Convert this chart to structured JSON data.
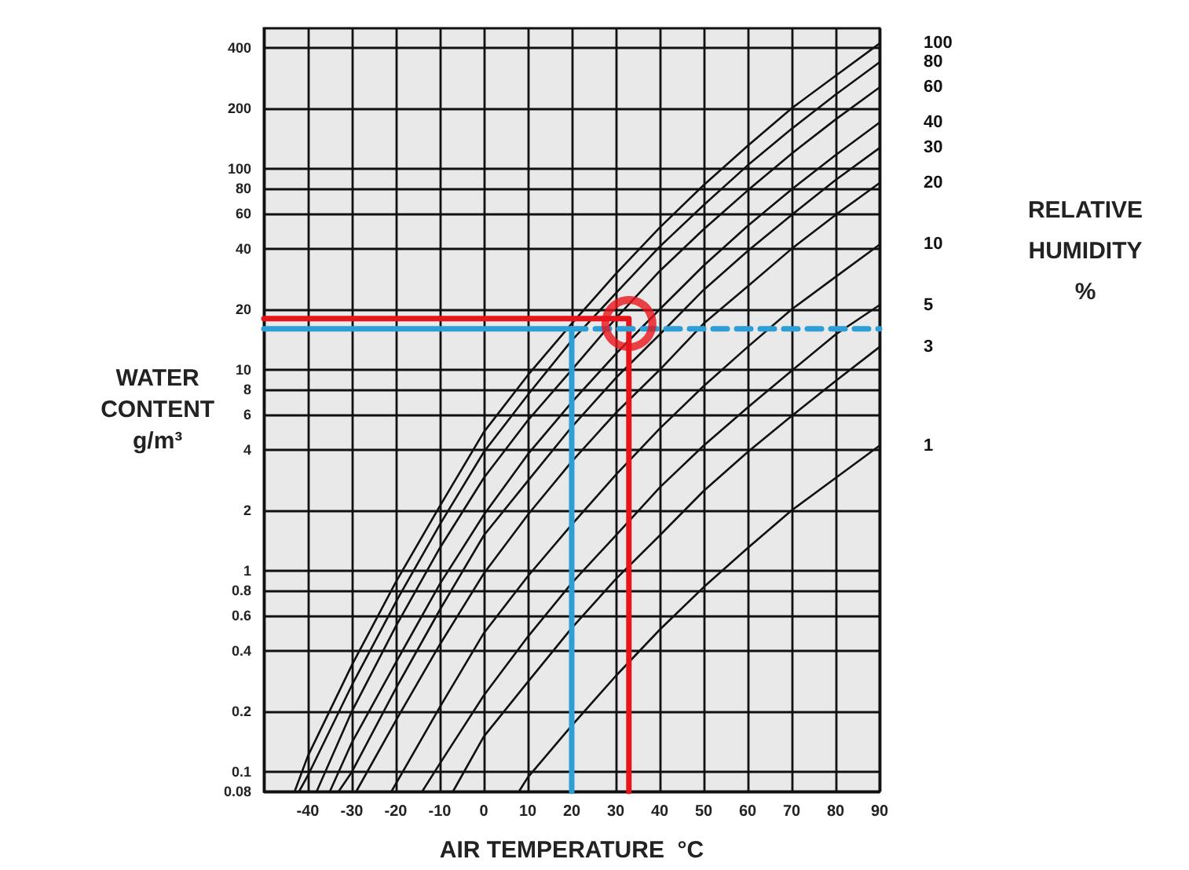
{
  "chart_data": {
    "type": "line",
    "xlabel": "AIR TEMPERATURE  °C",
    "ylabel": "WATER CONTENT g/m³",
    "legend_title": "RELATIVE HUMIDITY %",
    "log": "y",
    "grid": true,
    "marker": "none",
    "line_style": "solid",
    "xlim": [
      -50,
      90
    ],
    "xticks": [
      {
        "value": -50,
        "label": null
      },
      -40,
      -30,
      -20,
      -10,
      0,
      10,
      20,
      30,
      40,
      50,
      60,
      70,
      80,
      90
    ],
    "ylim": [
      0.08,
      500
    ],
    "yticks": [
      0.08,
      0.1,
      0.2,
      0.4,
      0.6,
      0.8,
      1,
      2,
      4,
      6,
      8,
      10,
      20,
      40,
      60,
      80,
      100,
      200,
      400
    ],
    "series": [
      {
        "name": "100",
        "color": "#111111",
        "x": [
          -43,
          -40,
          -30,
          -20,
          -10,
          0,
          10,
          20,
          30,
          40,
          50,
          60,
          70,
          80,
          90
        ],
        "values": [
          0.08,
          0.12,
          0.34,
          0.88,
          2.1,
          4.9,
          9.4,
          17,
          30,
          51,
          83,
          130,
          200,
          290,
          420
        ]
      },
      {
        "name": "80",
        "color": "#111111",
        "x": [
          -42,
          -40,
          -30,
          -20,
          -10,
          0,
          10,
          20,
          30,
          40,
          50,
          60,
          70,
          80,
          90
        ],
        "values": [
          0.08,
          0.096,
          0.27,
          0.7,
          1.7,
          3.9,
          7.5,
          14,
          24,
          41,
          66,
          104,
          158,
          234,
          339
        ]
      },
      {
        "name": "60",
        "color": "#111111",
        "x": [
          -38,
          -30,
          -20,
          -10,
          0,
          10,
          20,
          30,
          40,
          50,
          60,
          70,
          80,
          90
        ],
        "values": [
          0.08,
          0.2,
          0.53,
          1.3,
          2.9,
          5.6,
          10,
          18,
          31,
          50,
          78,
          119,
          176,
          254
        ]
      },
      {
        "name": "40",
        "color": "#111111",
        "x": [
          -35,
          -30,
          -20,
          -10,
          0,
          10,
          20,
          30,
          40,
          50,
          60,
          70,
          80,
          90
        ],
        "values": [
          0.08,
          0.14,
          0.35,
          0.86,
          1.9,
          3.8,
          6.9,
          12,
          20,
          33,
          52,
          79,
          117,
          170
        ]
      },
      {
        "name": "30",
        "color": "#111111",
        "x": [
          -33,
          -30,
          -20,
          -10,
          0,
          10,
          20,
          30,
          40,
          50,
          60,
          70,
          80,
          90
        ],
        "values": [
          0.08,
          0.1,
          0.26,
          0.64,
          1.5,
          2.8,
          5.2,
          9.1,
          15,
          25,
          39,
          59,
          88,
          127
        ]
      },
      {
        "name": "20",
        "color": "#111111",
        "x": [
          -29,
          -20,
          -10,
          0,
          10,
          20,
          30,
          40,
          50,
          60,
          70,
          80,
          90
        ],
        "values": [
          0.08,
          0.18,
          0.43,
          0.97,
          1.9,
          3.5,
          6.1,
          10,
          17,
          26,
          40,
          59,
          85
        ]
      },
      {
        "name": "10",
        "color": "#111111",
        "x": [
          -21,
          -10,
          0,
          10,
          20,
          30,
          40,
          50,
          60,
          70,
          80,
          90
        ],
        "values": [
          0.08,
          0.21,
          0.49,
          0.94,
          1.7,
          3,
          5.1,
          8.3,
          13,
          20,
          29,
          42
        ]
      },
      {
        "name": "5",
        "color": "#111111",
        "x": [
          -14,
          -10,
          0,
          10,
          20,
          30,
          40,
          50,
          60,
          70,
          80,
          90
        ],
        "values": [
          0.08,
          0.11,
          0.24,
          0.47,
          0.87,
          1.5,
          2.6,
          4.2,
          6.5,
          9.9,
          15,
          21
        ]
      },
      {
        "name": "3",
        "color": "#111111",
        "x": [
          -7,
          0,
          10,
          20,
          30,
          40,
          50,
          60,
          70,
          80,
          90
        ],
        "values": [
          0.08,
          0.15,
          0.28,
          0.52,
          0.91,
          1.5,
          2.5,
          3.9,
          5.9,
          8.8,
          13
        ]
      },
      {
        "name": "1",
        "color": "#111111",
        "x": [
          8,
          10,
          20,
          30,
          40,
          50,
          60,
          70,
          80,
          90
        ],
        "values": [
          0.08,
          0.094,
          0.17,
          0.3,
          0.51,
          0.83,
          1.3,
          2,
          2.9,
          4.2
        ]
      },
      {
        "color": "#e8141b",
        "x": [
          -50,
          33,
          33
        ],
        "values": [
          18,
          18,
          0.08
        ]
      },
      {
        "color": "#2e9fd6",
        "x": [
          -50,
          20,
          20
        ],
        "values": [
          16,
          16,
          0.08
        ]
      },
      {
        "color": "#2e9fd6",
        "line_style": "dashed",
        "x": [
          20,
          90
        ],
        "values": [
          16,
          16
        ]
      },
      {
        "type": "scatter",
        "marker": "circle",
        "color": "#e8141b",
        "x": [
          33
        ],
        "values": [
          17
        ]
      }
    ]
  }
}
